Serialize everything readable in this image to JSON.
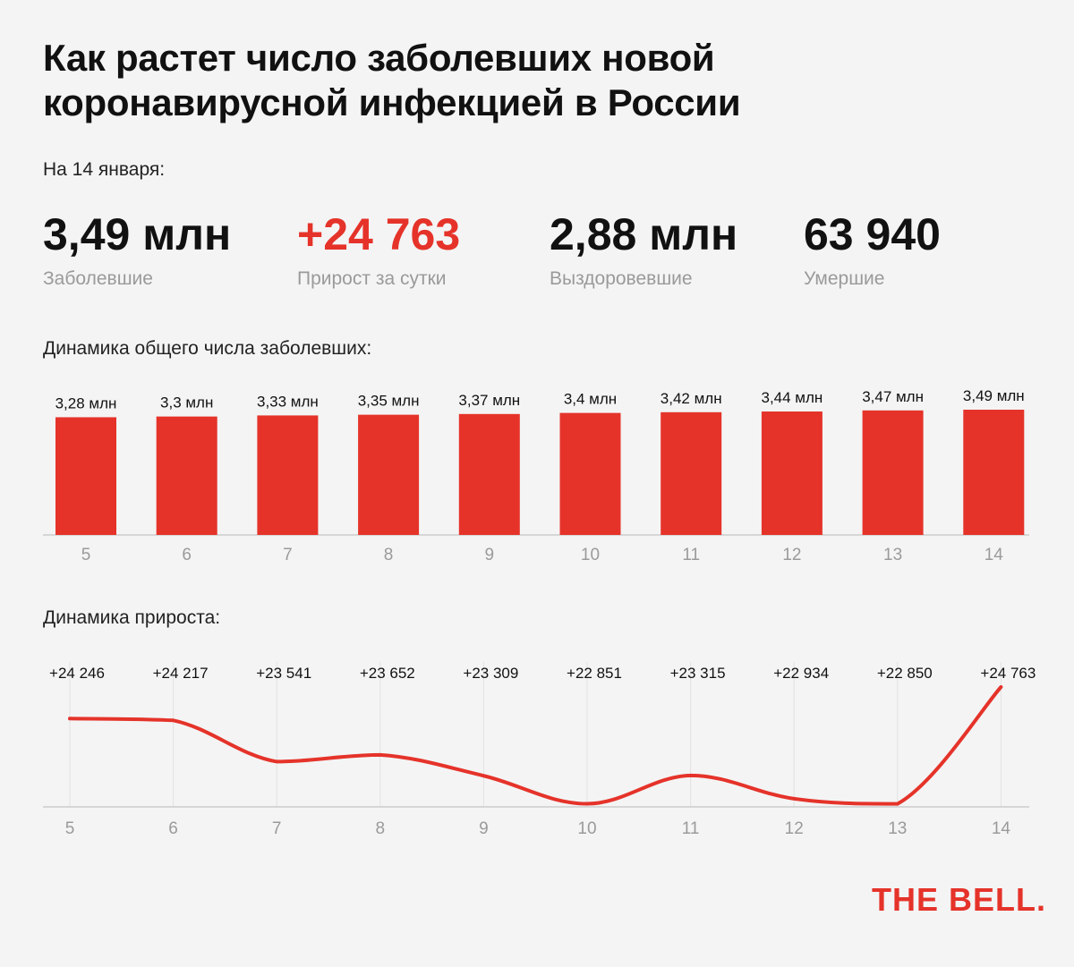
{
  "title": "Как растет число заболевших новой коронавирусной инфекцией в России",
  "date_label": "На 14 января:",
  "stats": [
    {
      "value": "3,49 млн",
      "label": "Заболевшие"
    },
    {
      "value": "+24 763",
      "label": "Прирост за сутки"
    },
    {
      "value": "2,88 млн",
      "label": "Выздоровевшие"
    },
    {
      "value": "63 940",
      "label": "Умершие"
    }
  ],
  "colors": {
    "accent": "#e5332a",
    "axis": "#cccccc",
    "grid": "#e2e2e2",
    "muted": "#9a9a9a"
  },
  "logo": "THE BELL.",
  "chart_data": [
    {
      "type": "bar",
      "title": "Динамика общего числа заболевших:",
      "categories": [
        "5",
        "6",
        "7",
        "8",
        "9",
        "10",
        "11",
        "12",
        "13",
        "14"
      ],
      "values": [
        3.28,
        3.3,
        3.33,
        3.35,
        3.37,
        3.4,
        3.42,
        3.44,
        3.47,
        3.49
      ],
      "data_labels": [
        "3,28 млн",
        "3,3 млн",
        "3,33 млн",
        "3,35 млн",
        "3,37 млн",
        "3,4 млн",
        "3,42 млн",
        "3,44 млн",
        "3,47 млн",
        "3,49 млн"
      ],
      "ylim": [
        0,
        3.49
      ],
      "grid": false
    },
    {
      "type": "line",
      "title": "Динамика прироста:",
      "categories": [
        "5",
        "6",
        "7",
        "8",
        "9",
        "10",
        "11",
        "12",
        "13",
        "14"
      ],
      "values": [
        24246,
        24217,
        23541,
        23652,
        23309,
        22851,
        23315,
        22934,
        22850,
        24763
      ],
      "data_labels": [
        "+24 246",
        "+24 217",
        "+23 541",
        "+23 652",
        "+23 309",
        "+22 851",
        "+23 315",
        "+22 934",
        "+22 850",
        "+24 763"
      ],
      "ylim": [
        22800,
        24763
      ],
      "grid": true
    }
  ]
}
